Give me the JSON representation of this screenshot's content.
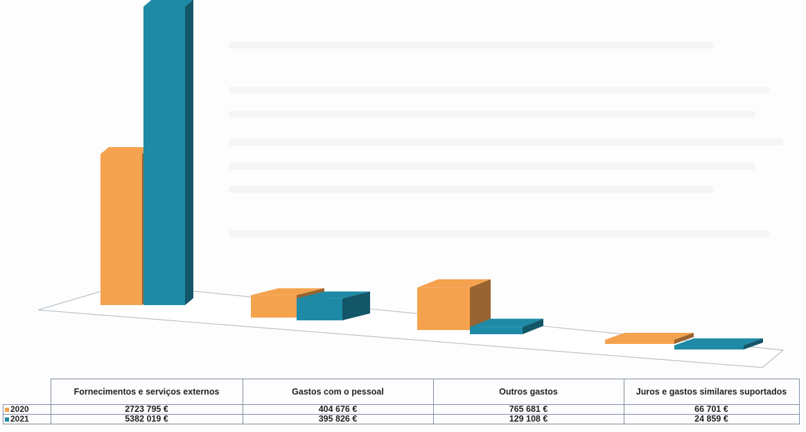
{
  "chart_data": {
    "type": "bar",
    "title": "",
    "xlabel": "",
    "ylabel": "",
    "ylim": [
      0,
      5500000
    ],
    "categories": [
      "Fornecimentos e serviços externos",
      "Gastos com o pessoal",
      "Outros gastos",
      "Juros e gastos similares suportados"
    ],
    "series": [
      {
        "name": "2020",
        "color": "#f5a24f",
        "values": [
          2723795,
          404676,
          765681,
          66701
        ],
        "labels": [
          "2723 795 €",
          "404 676 €",
          "765 681 €",
          "66 701 €"
        ]
      },
      {
        "name": "2021",
        "color": "#1f8aa6",
        "values": [
          5382019,
          395826,
          129108,
          24859
        ],
        "labels": [
          "5382 019 €",
          "395 826 €",
          "129 108 €",
          "24 859 €"
        ]
      }
    ],
    "grid": false,
    "legend": "table-left"
  }
}
